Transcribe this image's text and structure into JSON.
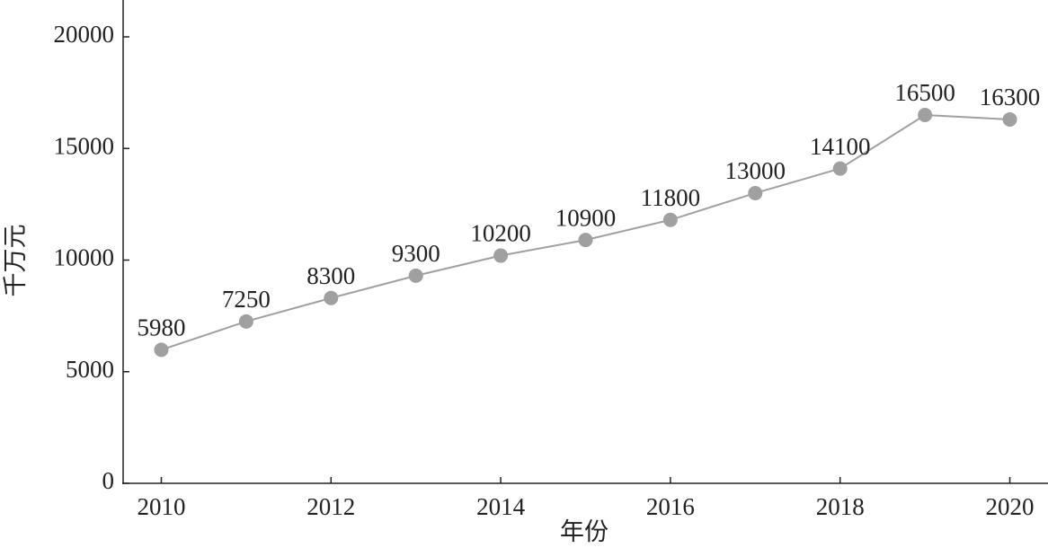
{
  "chart_data": {
    "type": "line",
    "x_label": "年份",
    "y_label": "千万元",
    "x": [
      2010,
      2011,
      2012,
      2013,
      2014,
      2015,
      2016,
      2017,
      2018,
      2019,
      2020
    ],
    "series": [
      {
        "name": "value",
        "color": "#a0a0a0",
        "values": [
          5980,
          7250,
          8300,
          9300,
          10200,
          10900,
          11800,
          13000,
          14100,
          16500,
          16300
        ]
      }
    ],
    "xlim": [
      2009.55,
      2020.45
    ],
    "xticks": [
      2010,
      2012,
      2014,
      2016,
      2018,
      2020
    ],
    "ylim": [
      0,
      21570
    ],
    "yticks": [
      0,
      5000,
      10000,
      15000,
      20000
    ],
    "data_labels": true
  }
}
